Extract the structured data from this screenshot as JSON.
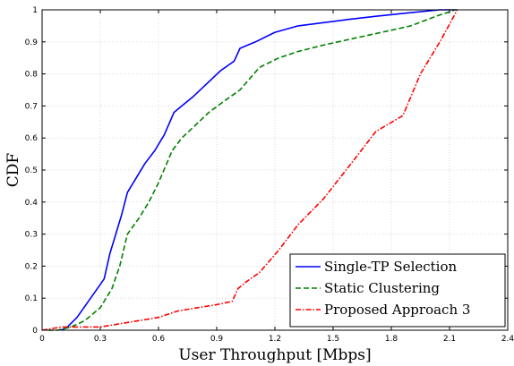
{
  "chart_data": {
    "type": "line",
    "title": "",
    "xlabel": "User Throughput [Mbps]",
    "ylabel": "CDF",
    "xlim": [
      0,
      2.4
    ],
    "ylim": [
      0,
      1
    ],
    "x_ticks": [
      "0",
      "0.3",
      "0.6",
      "0.9",
      "1.2",
      "1.5",
      "1.8",
      "2.1",
      "2.4"
    ],
    "y_ticks": [
      "0",
      "0.1",
      "0.2",
      "0.3",
      "0.4",
      "0.5",
      "0.6",
      "0.7",
      "0.8",
      "0.9",
      "1"
    ],
    "grid": true,
    "legend_position": "bottom-right",
    "series": [
      {
        "name": "Single-TP Selection",
        "color": "#0000ff",
        "dash": "solid",
        "x": [
          0.1,
          0.13,
          0.18,
          0.25,
          0.32,
          0.35,
          0.38,
          0.41,
          0.44,
          0.48,
          0.53,
          0.58,
          0.63,
          0.68,
          0.72,
          0.78,
          0.85,
          0.92,
          0.99,
          1.02,
          1.1,
          1.2,
          1.32,
          1.45,
          1.58,
          1.72,
          1.88,
          2.05,
          2.14
        ],
        "y": [
          0.0,
          0.01,
          0.04,
          0.1,
          0.16,
          0.24,
          0.3,
          0.36,
          0.43,
          0.47,
          0.52,
          0.56,
          0.61,
          0.68,
          0.7,
          0.73,
          0.77,
          0.81,
          0.84,
          0.88,
          0.9,
          0.93,
          0.95,
          0.96,
          0.97,
          0.98,
          0.99,
          1.0,
          1.0
        ]
      },
      {
        "name": "Static Clustering",
        "color": "#008000",
        "dash": "dashed",
        "x": [
          0.03,
          0.08,
          0.15,
          0.22,
          0.3,
          0.36,
          0.4,
          0.44,
          0.5,
          0.55,
          0.6,
          0.67,
          0.72,
          0.79,
          0.86,
          0.95,
          1.02,
          1.12,
          1.22,
          1.32,
          1.45,
          1.6,
          1.75,
          1.9,
          2.03,
          2.13
        ],
        "y": [
          0.0,
          0.0,
          0.01,
          0.03,
          0.07,
          0.13,
          0.2,
          0.3,
          0.35,
          0.4,
          0.46,
          0.56,
          0.6,
          0.64,
          0.68,
          0.72,
          0.75,
          0.82,
          0.85,
          0.87,
          0.89,
          0.91,
          0.93,
          0.95,
          0.98,
          1.0
        ]
      },
      {
        "name": "Proposed Approach 3",
        "color": "#ff0000",
        "dash": "dashdot",
        "x": [
          0.0,
          0.1,
          0.2,
          0.3,
          0.4,
          0.5,
          0.6,
          0.7,
          0.8,
          0.9,
          0.98,
          1.01,
          1.05,
          1.12,
          1.22,
          1.32,
          1.45,
          1.58,
          1.72,
          1.86,
          1.95,
          2.05,
          2.14
        ],
        "y": [
          0.0,
          0.01,
          0.01,
          0.01,
          0.02,
          0.03,
          0.04,
          0.06,
          0.07,
          0.08,
          0.09,
          0.13,
          0.15,
          0.18,
          0.25,
          0.33,
          0.41,
          0.51,
          0.62,
          0.67,
          0.8,
          0.9,
          1.0
        ]
      }
    ]
  }
}
